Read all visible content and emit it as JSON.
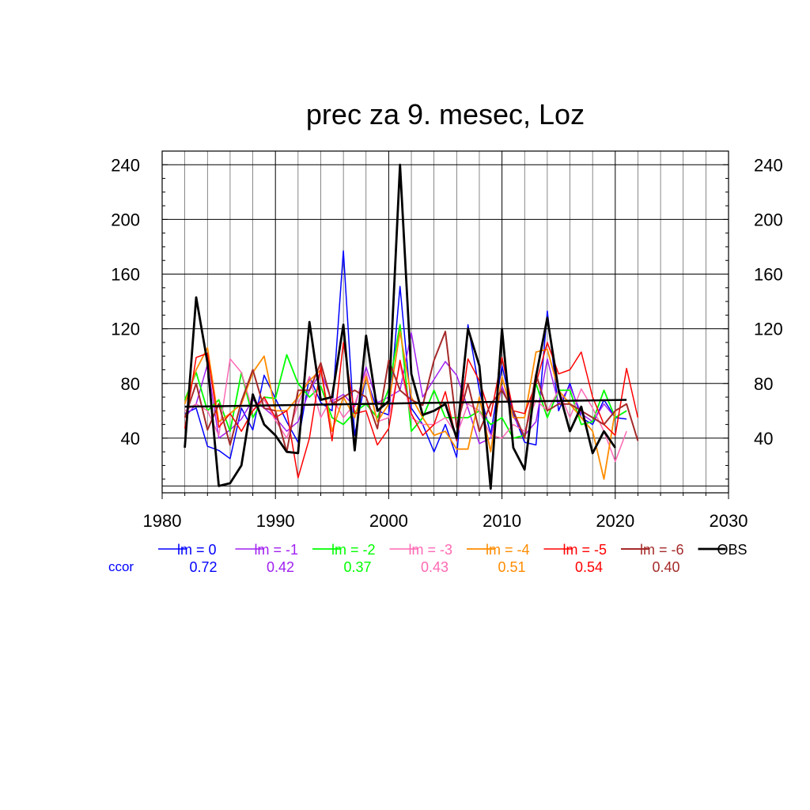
{
  "chart_data": {
    "type": "line",
    "title": "prec za 9. mesec, Loz",
    "xlim": [
      1980,
      2030
    ],
    "ylim": [
      0,
      250
    ],
    "x_ticks": [
      1980,
      1990,
      2000,
      2010,
      2020,
      2030
    ],
    "y_ticks": [
      40,
      80,
      120,
      160,
      200,
      240
    ],
    "grid": true,
    "ccor_label": "ccor",
    "years": [
      1982,
      1983,
      1984,
      1985,
      1986,
      1987,
      1988,
      1989,
      1990,
      1991,
      1992,
      1993,
      1994,
      1995,
      1996,
      1997,
      1998,
      1999,
      2000,
      2001,
      2002,
      2003,
      2004,
      2005,
      2006,
      2007,
      2008,
      2009,
      2010,
      2011,
      2012,
      2013,
      2014,
      2015,
      2016,
      2017,
      2018,
      2019,
      2020,
      2021,
      2022
    ],
    "series": [
      {
        "name": "lm = 0",
        "color": "#0000ff",
        "width": 1.5,
        "ccor": "0.72",
        "values": [
          58,
          62,
          34,
          31,
          25,
          62,
          46,
          86,
          69,
          52,
          37,
          85,
          66,
          60,
          177,
          42,
          85,
          60,
          57,
          151,
          62,
          50,
          30,
          50,
          26,
          123,
          75,
          43,
          93,
          58,
          37,
          35,
          133,
          60,
          80,
          55,
          50,
          68,
          55,
          54,
          null
        ]
      },
      {
        "name": "lm = -1",
        "color": "#a020f0",
        "width": 1.5,
        "ccor": "0.42",
        "values": [
          55,
          65,
          94,
          40,
          46,
          54,
          68,
          62,
          55,
          45,
          52,
          75,
          88,
          67,
          72,
          63,
          92,
          66,
          70,
          75,
          117,
          70,
          83,
          96,
          86,
          62,
          36,
          40,
          78,
          56,
          42,
          52,
          98,
          65,
          78,
          58,
          52,
          65,
          55,
          60,
          null
        ]
      },
      {
        "name": "lm = -2",
        "color": "#00ff00",
        "width": 1.8,
        "ccor": "0.37",
        "values": [
          68,
          88,
          60,
          68,
          45,
          88,
          55,
          70,
          69,
          101,
          80,
          70,
          78,
          55,
          50,
          59,
          65,
          55,
          76,
          123,
          45,
          55,
          75,
          55,
          55,
          55,
          60,
          50,
          55,
          40,
          42,
          80,
          55,
          75,
          75,
          50,
          52,
          75,
          55,
          60,
          null
        ]
      },
      {
        "name": "lm = -3",
        "color": "#ff69b4",
        "width": 1.5,
        "ccor": "0.43",
        "values": [
          60,
          65,
          60,
          42,
          98,
          88,
          60,
          68,
          53,
          40,
          65,
          85,
          55,
          70,
          55,
          65,
          88,
          52,
          55,
          94,
          55,
          50,
          50,
          55,
          42,
          65,
          60,
          42,
          40,
          50,
          45,
          68,
          60,
          75,
          55,
          76,
          62,
          45,
          23,
          45,
          null
        ]
      },
      {
        "name": "lm = -4",
        "color": "#ff8c00",
        "width": 1.8,
        "ccor": "0.51",
        "values": [
          65,
          90,
          106,
          52,
          58,
          65,
          88,
          100,
          60,
          60,
          70,
          82,
          90,
          45,
          70,
          55,
          85,
          52,
          65,
          118,
          70,
          55,
          42,
          45,
          32,
          32,
          70,
          30,
          85,
          55,
          55,
          103,
          105,
          75,
          65,
          55,
          45,
          10,
          60,
          65,
          null
        ]
      },
      {
        "name": "lm = -5",
        "color": "#ff0000",
        "width": 1.5,
        "ccor": "0.54",
        "values": [
          47,
          99,
          102,
          48,
          58,
          45,
          60,
          70,
          55,
          60,
          11,
          40,
          92,
          38,
          110,
          58,
          60,
          35,
          47,
          97,
          58,
          42,
          50,
          74,
          38,
          98,
          82,
          56,
          99,
          60,
          58,
          80,
          110,
          87,
          90,
          103,
          70,
          50,
          42,
          91,
          55
        ]
      },
      {
        "name": "lm = -6",
        "color": "#a52a2a",
        "width": 2.0,
        "ccor": "0.40",
        "values": [
          55,
          80,
          46,
          65,
          35,
          67,
          90,
          62,
          60,
          30,
          75,
          75,
          95,
          65,
          70,
          75,
          70,
          47,
          97,
          75,
          68,
          64,
          97,
          118,
          48,
          80,
          45,
          65,
          75,
          60,
          40,
          87,
          60,
          65,
          65,
          60,
          55,
          50,
          60,
          65,
          38
        ]
      },
      {
        "name": "OBS",
        "color": "#000000",
        "width": 2.8,
        "ccor": "",
        "values": [
          33,
          143,
          95,
          5,
          7,
          20,
          72,
          50,
          42,
          30,
          29,
          125,
          68,
          70,
          123,
          31,
          115,
          60,
          67,
          240,
          87,
          57,
          60,
          65,
          40,
          120,
          93,
          3,
          120,
          33,
          17,
          85,
          128,
          75,
          45,
          63,
          29,
          45,
          33,
          null,
          null
        ]
      }
    ],
    "trend": {
      "color": "#000000",
      "x": [
        1982,
        2021
      ],
      "y": [
        63,
        68
      ]
    }
  }
}
